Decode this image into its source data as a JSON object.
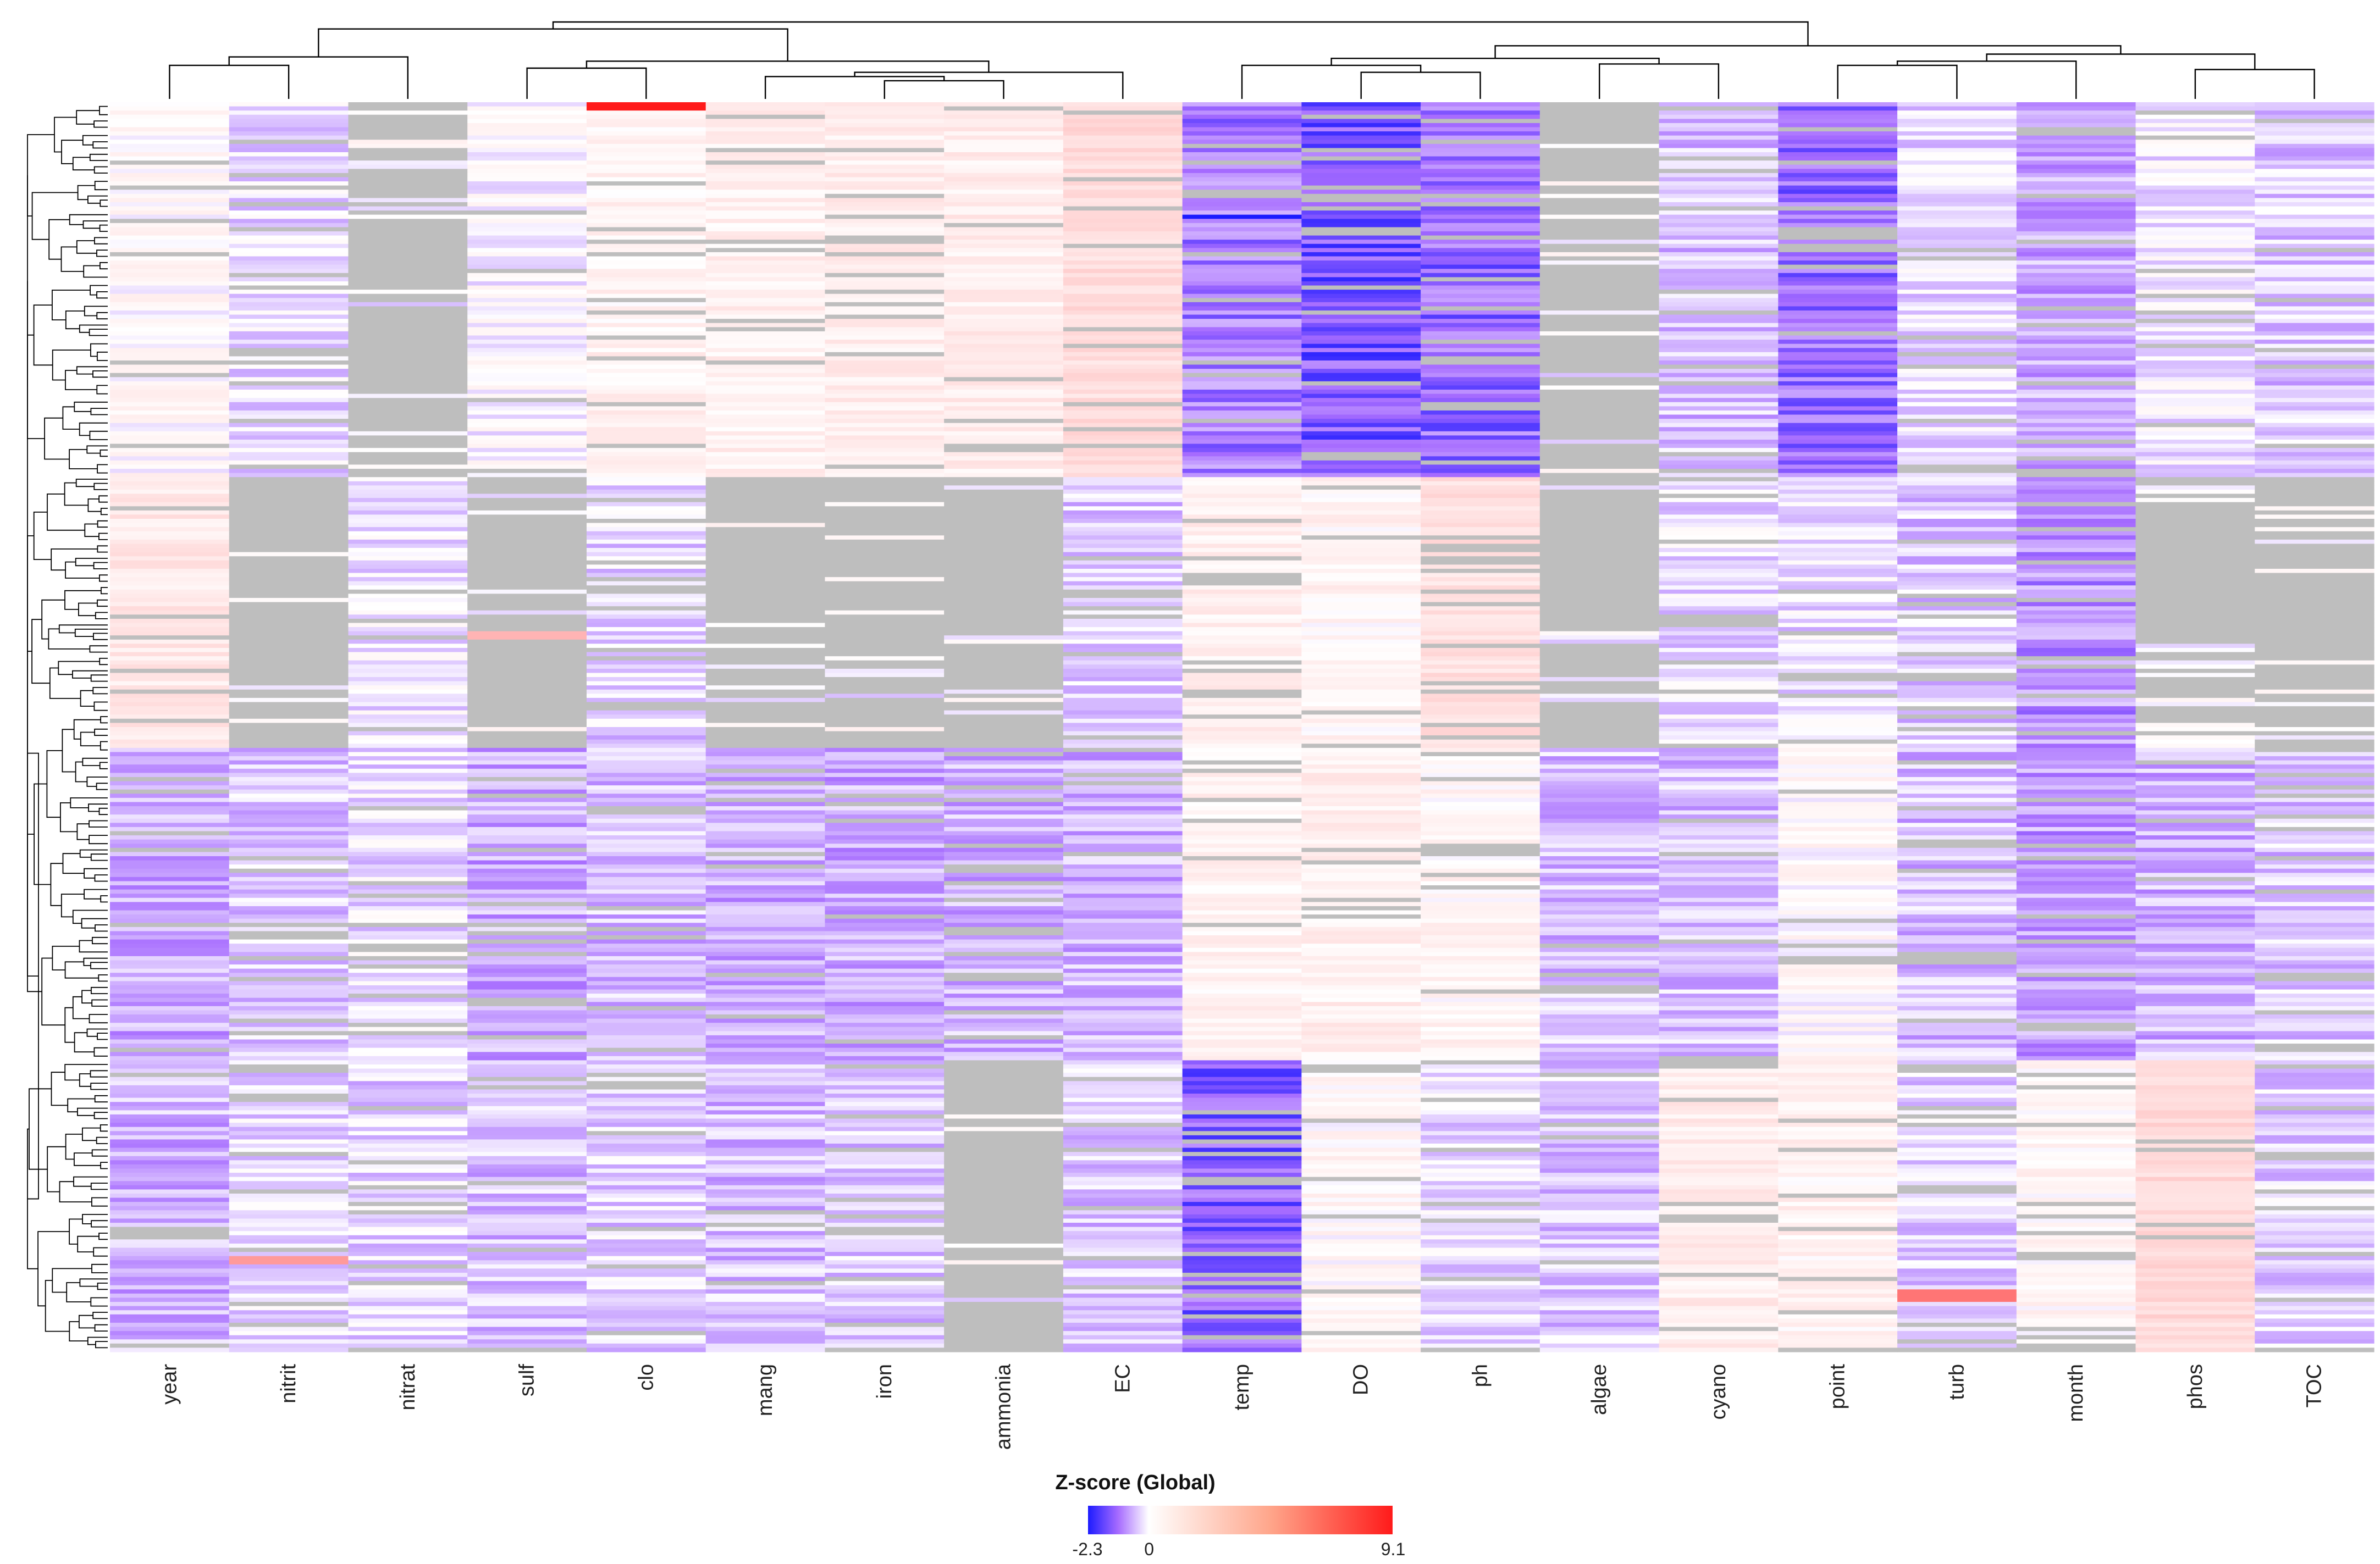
{
  "chart_data": {
    "type": "heatmap",
    "title": "",
    "columns": [
      "year",
      "nitrit",
      "nitrat",
      "sulf",
      "clo",
      "mang",
      "iron",
      "ammonia",
      "EC",
      "temp",
      "DO",
      "ph",
      "algae",
      "cyano",
      "point",
      "turb",
      "month",
      "phos",
      "TOC"
    ],
    "row_count": 300,
    "missing_color": "#bebebe",
    "row_dendrogram": true,
    "column_dendrogram": true,
    "column_dendrogram_merges": [
      {
        "left": "year",
        "right": "nitrit",
        "height": 0.24
      },
      {
        "left": "year,nitrit",
        "right": "nitrat",
        "height": 0.3
      },
      {
        "left": "sulf",
        "right": "clo",
        "height": 0.22
      },
      {
        "left": "iron",
        "right": "ammonia",
        "height": 0.13
      },
      {
        "left": "mang",
        "right": "iron,ammonia",
        "height": 0.11
      },
      {
        "left": "iron,ammonia,mang",
        "right": "EC",
        "height": 0.09
      },
      {
        "left": "sulf,clo",
        "right": "mang,iron,ammonia,EC",
        "height": 0.27
      },
      {
        "left": "year,nitrit,nitrat",
        "right": "sulf,clo,mang,iron,ammonia,EC",
        "height": 0.5
      },
      {
        "left": "DO",
        "right": "ph",
        "height": 0.19
      },
      {
        "left": "temp",
        "right": "DO,ph",
        "height": 0.24
      },
      {
        "left": "algae",
        "right": "cyano",
        "height": 0.25
      },
      {
        "left": "temp,DO,ph",
        "right": "algae,cyano",
        "height": 0.29
      },
      {
        "left": "point",
        "right": "turb",
        "height": 0.24
      },
      {
        "left": "point,turb",
        "right": "month",
        "height": 0.27
      },
      {
        "left": "phos",
        "right": "TOC",
        "height": 0.21
      },
      {
        "left": "point,turb,month",
        "right": "phos,TOC",
        "height": 0.32
      },
      {
        "left": "temp,DO,ph,algae,cyano",
        "right": "point,turb,month,phos,TOC",
        "height": 0.38
      },
      {
        "left": "year..EC",
        "right": "temp..TOC",
        "height": 0.55
      }
    ],
    "row_blocks": [
      {
        "rows": [
          0,
          90
        ],
        "values": {
          "year": 0.2,
          "nitrit": -0.3,
          "nitrat": null,
          "sulf": 0.0,
          "clo": 0.5,
          "mang": 0.6,
          "iron": 0.7,
          "ammonia": 0.7,
          "EC": 1.4,
          "temp": -1.2,
          "DO": -1.6,
          "ph": -1.4,
          "algae": null,
          "cyano": -0.6,
          "point": -1.4,
          "turb": -0.3,
          "month": -0.8,
          "phos": -0.2,
          "TOC": -0.5
        }
      },
      {
        "rows": [
          90,
          155
        ],
        "values": {
          "year": 0.9,
          "nitrit": null,
          "nitrat": -0.2,
          "sulf": null,
          "clo": -0.4,
          "mang": null,
          "iron": null,
          "ammonia": null,
          "EC": -0.5,
          "temp": 0.6,
          "DO": 0.4,
          "ph": 1.2,
          "algae": null,
          "cyano": -0.3,
          "point": -0.3,
          "turb": -0.5,
          "month": -1.0,
          "phos": null,
          "TOC": null
        }
      },
      {
        "rows": [
          155,
          230
        ],
        "values": {
          "year": -0.8,
          "nitrit": -0.5,
          "nitrat": -0.3,
          "sulf": -0.8,
          "clo": -0.6,
          "mang": -0.8,
          "iron": -0.8,
          "ammonia": -0.7,
          "EC": -0.7,
          "temp": 0.5,
          "DO": 0.6,
          "ph": 0.4,
          "algae": -0.6,
          "cyano": -0.6,
          "point": 0.2,
          "turb": -0.6,
          "month": -0.9,
          "phos": -0.7,
          "TOC": -0.5
        }
      },
      {
        "rows": [
          230,
          300
        ],
        "values": {
          "year": -0.7,
          "nitrit": -0.3,
          "nitrat": -0.4,
          "sulf": -0.6,
          "clo": -0.4,
          "mang": -0.6,
          "iron": -0.5,
          "ammonia": null,
          "EC": -0.5,
          "temp": -1.5,
          "DO": 0.3,
          "ph": -0.3,
          "algae": -0.5,
          "cyano": 0.7,
          "point": 0.5,
          "turb": -0.4,
          "month": 0.4,
          "phos": 1.5,
          "TOC": -0.4
        }
      }
    ],
    "notable_values": [
      {
        "column": "clo",
        "row_range": [
          0,
          2
        ],
        "z": 9.1
      },
      {
        "column": "temp",
        "row_range": [
          27,
          28
        ],
        "z": -2.3
      },
      {
        "column": "turb",
        "row_range": [
          285,
          288
        ],
        "z": 5.5
      },
      {
        "column": "nitrit",
        "row_range": [
          277,
          279
        ],
        "z": 4.0
      },
      {
        "column": "sulf",
        "row_range": [
          127,
          129
        ],
        "z": 3.0
      }
    ],
    "color_scale": {
      "title": "Z-score (Global)",
      "min": -2.3,
      "center": 0,
      "max": 9.1,
      "tick_labels": [
        "-2.3",
        "0",
        "9.1"
      ],
      "low_color": "#1a1aff",
      "mid_low_color": "#a66bff",
      "center_color": "#ffffff",
      "high_color": "#ff1a1a"
    }
  }
}
